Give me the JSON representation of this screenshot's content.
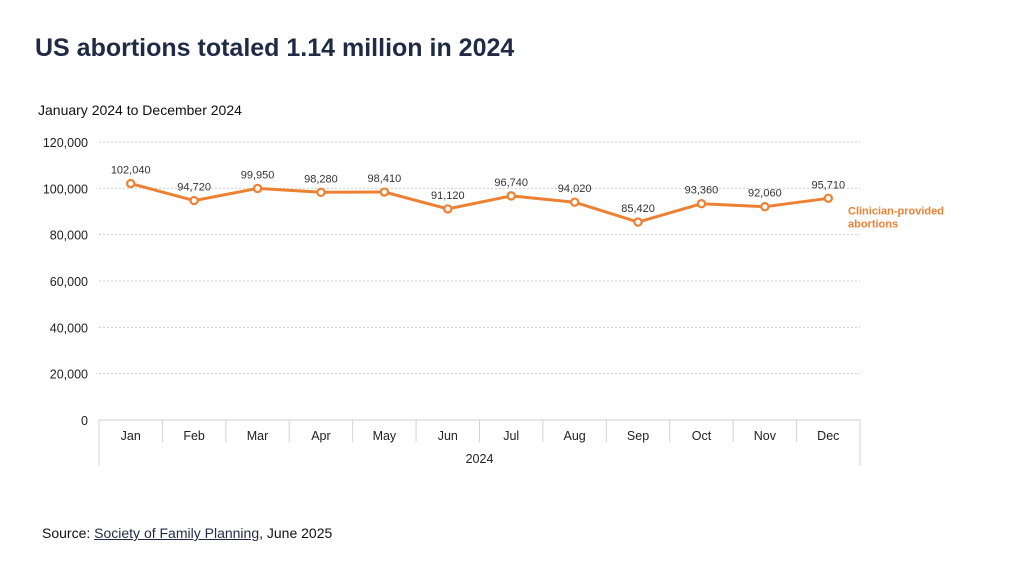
{
  "page": {
    "title": "US abortions totaled 1.14 million in 2024",
    "subtitle": "January 2024 to December 2024",
    "source_prefix": "Source: ",
    "source_link": "Society of Family Planning",
    "source_suffix": ", June 2025"
  },
  "colors": {
    "series": "#ec8134",
    "grid": "#cccccc",
    "title": "#1f2a44"
  },
  "chart_data": {
    "type": "line",
    "title": "US abortions totaled 1.14 million in 2024",
    "subtitle": "January 2024 to December 2024",
    "xlabel": "2024",
    "ylabel": "",
    "categories": [
      "Jan",
      "Feb",
      "Mar",
      "Apr",
      "May",
      "Jun",
      "Jul",
      "Aug",
      "Sep",
      "Oct",
      "Nov",
      "Dec"
    ],
    "series": [
      {
        "name": "Clinician-provided abortions",
        "values": [
          102040,
          94720,
          99950,
          98280,
          98410,
          91120,
          96740,
          94020,
          85420,
          93360,
          92060,
          95710
        ],
        "labels": [
          "102,040",
          "94,720",
          "99,950",
          "98,280",
          "98,410",
          "91,120",
          "96,740",
          "94,020",
          "85,420",
          "93,360",
          "92,060",
          "95,710"
        ]
      }
    ],
    "legend_lines": [
      "Clinician-provided",
      "abortions"
    ],
    "legend_position": "right",
    "ylim": [
      0,
      120000
    ],
    "yticks": [
      0,
      20000,
      40000,
      60000,
      80000,
      100000,
      120000
    ],
    "ytick_labels": [
      "0",
      "20,000",
      "40,000",
      "60,000",
      "80,000",
      "100,000",
      "120,000"
    ],
    "grid": true
  }
}
